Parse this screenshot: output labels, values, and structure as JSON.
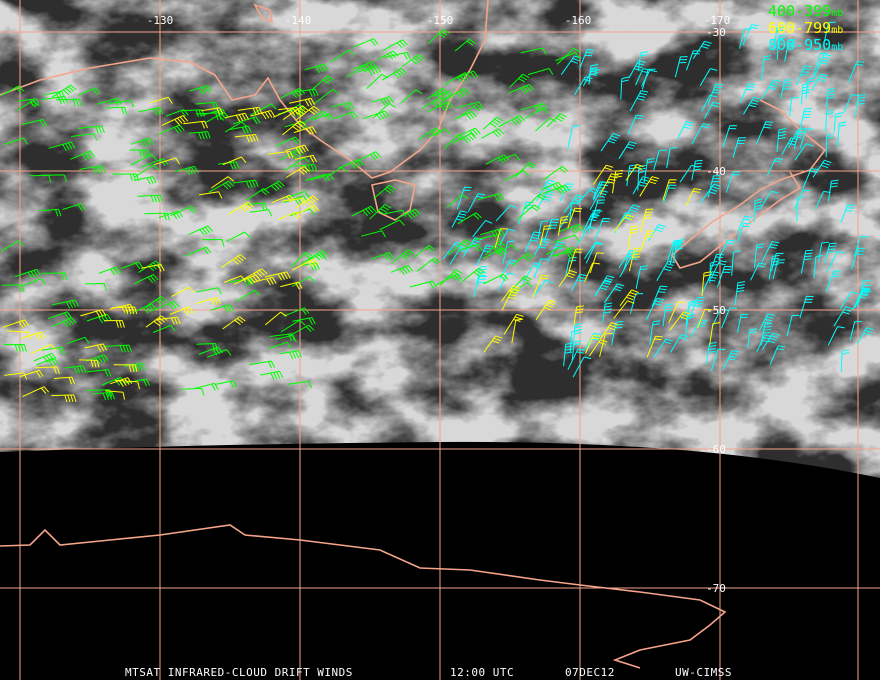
{
  "longitude_labels": [
    "-130",
    "-140",
    "-150",
    "-160",
    "-170"
  ],
  "latitude_labels": [
    "-30",
    "-40",
    "-50",
    "-60",
    "-70"
  ],
  "legend": [
    {
      "range": "400-399",
      "unit": "mb"
    },
    {
      "range": "600-799",
      "unit": "mb"
    },
    {
      "range": "800-950",
      "unit": "mb"
    }
  ],
  "footer": {
    "product": "MTSAT INFRARED-CLOUD DRIFT WINDS",
    "time": "12:00 UTC",
    "date": "07DEC12",
    "source": "UW-CIMSS"
  }
}
